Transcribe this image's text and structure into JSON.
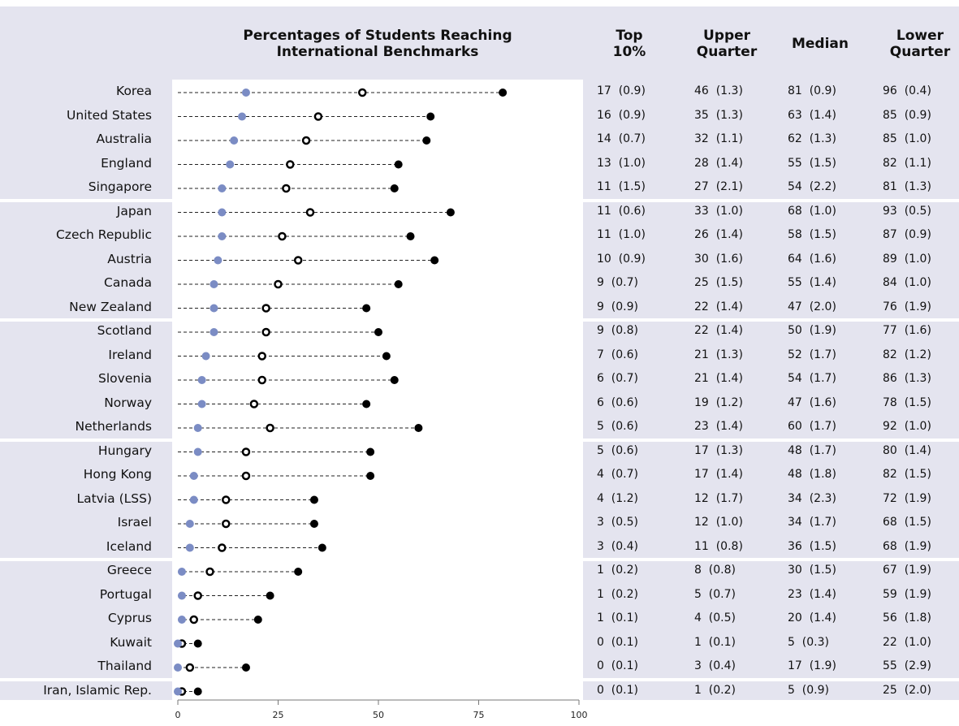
{
  "header": {
    "chart_title_line1": "Percentages of Students Reaching",
    "chart_title_line2": "International Benchmarks",
    "col_top10_line1": "Top",
    "col_top10_line2": "10%",
    "col_upper_line1": "Upper",
    "col_upper_line2": "Quarter",
    "col_median": "Median",
    "col_lower_line1": "Lower",
    "col_lower_line2": "Quarter"
  },
  "colors": {
    "top10_marker": "#7b8cc4",
    "upper_marker": "#ffffff",
    "median_marker": "#000000",
    "panel_background": "#e4e4ef"
  },
  "chart_data": {
    "type": "scatter",
    "xlim": [
      0,
      100
    ],
    "xticks": [
      "0",
      "25",
      "50",
      "75",
      "100"
    ],
    "countries": [
      "Korea",
      "United States",
      "Australia",
      "England",
      "Singapore",
      "Japan",
      "Czech Republic",
      "Austria",
      "Canada",
      "New Zealand",
      "Scotland",
      "Ireland",
      "Slovenia",
      "Norway",
      "Netherlands",
      "Hungary",
      "Hong Kong",
      "Latvia (LSS)",
      "Israel",
      "Iceland",
      "Greece",
      "Portugal",
      "Cyprus",
      "Kuwait",
      "Thailand",
      "Iran, Islamic Rep."
    ],
    "series": [
      {
        "marker": "filled-blue",
        "values": [
          17,
          16,
          14,
          13,
          11,
          11,
          11,
          10,
          9,
          9,
          9,
          7,
          6,
          6,
          5,
          5,
          4,
          4,
          3,
          3,
          1,
          1,
          1,
          0,
          0,
          0
        ]
      },
      {
        "marker": "open-circle",
        "values": [
          46,
          35,
          32,
          28,
          27,
          33,
          26,
          30,
          25,
          22,
          22,
          21,
          21,
          19,
          23,
          17,
          17,
          12,
          12,
          11,
          8,
          5,
          4,
          1,
          3,
          1
        ]
      },
      {
        "marker": "filled-black",
        "values": [
          81,
          63,
          62,
          55,
          54,
          68,
          58,
          64,
          55,
          47,
          50,
          52,
          54,
          47,
          60,
          48,
          48,
          34,
          34,
          36,
          30,
          23,
          20,
          5,
          17,
          5
        ]
      }
    ]
  },
  "table": {
    "rows": [
      {
        "top10": "17  (0.9)",
        "upper": "46  (1.3)",
        "median": "81  (0.9)",
        "lower": "96  (0.4)"
      },
      {
        "top10": "16  (0.9)",
        "upper": "35  (1.3)",
        "median": "63  (1.4)",
        "lower": "85  (0.9)"
      },
      {
        "top10": "14  (0.7)",
        "upper": "32  (1.1)",
        "median": "62  (1.3)",
        "lower": "85  (1.0)"
      },
      {
        "top10": "13  (1.0)",
        "upper": "28  (1.4)",
        "median": "55  (1.5)",
        "lower": "82  (1.1)"
      },
      {
        "top10": "11  (1.5)",
        "upper": "27  (2.1)",
        "median": "54  (2.2)",
        "lower": "81  (1.3)"
      },
      {
        "top10": "11  (0.6)",
        "upper": "33  (1.0)",
        "median": "68  (1.0)",
        "lower": "93  (0.5)"
      },
      {
        "top10": "11  (1.0)",
        "upper": "26  (1.4)",
        "median": "58  (1.5)",
        "lower": "87  (0.9)"
      },
      {
        "top10": "10  (0.9)",
        "upper": "30  (1.6)",
        "median": "64  (1.6)",
        "lower": "89  (1.0)"
      },
      {
        "top10": "9  (0.7)",
        "upper": "25  (1.5)",
        "median": "55  (1.4)",
        "lower": "84  (1.0)"
      },
      {
        "top10": "9  (0.9)",
        "upper": "22  (1.4)",
        "median": "47  (2.0)",
        "lower": "76  (1.9)"
      },
      {
        "top10": "9  (0.8)",
        "upper": "22  (1.4)",
        "median": "50  (1.9)",
        "lower": "77  (1.6)"
      },
      {
        "top10": "7  (0.6)",
        "upper": "21  (1.3)",
        "median": "52  (1.7)",
        "lower": "82  (1.2)"
      },
      {
        "top10": "6  (0.7)",
        "upper": "21  (1.4)",
        "median": "54  (1.7)",
        "lower": "86  (1.3)"
      },
      {
        "top10": "6  (0.6)",
        "upper": "19  (1.2)",
        "median": "47  (1.6)",
        "lower": "78  (1.5)"
      },
      {
        "top10": "5  (0.6)",
        "upper": "23  (1.4)",
        "median": "60  (1.7)",
        "lower": "92  (1.0)"
      },
      {
        "top10": "5  (0.6)",
        "upper": "17  (1.3)",
        "median": "48  (1.7)",
        "lower": "80  (1.4)"
      },
      {
        "top10": "4  (0.7)",
        "upper": "17  (1.4)",
        "median": "48  (1.8)",
        "lower": "82  (1.5)"
      },
      {
        "top10": "4  (1.2)",
        "upper": "12  (1.7)",
        "median": "34  (2.3)",
        "lower": "72  (1.9)"
      },
      {
        "top10": "3  (0.5)",
        "upper": "12  (1.0)",
        "median": "34  (1.7)",
        "lower": "68  (1.5)"
      },
      {
        "top10": "3  (0.4)",
        "upper": "11  (0.8)",
        "median": "36  (1.5)",
        "lower": "68  (1.9)"
      },
      {
        "top10": "1  (0.2)",
        "upper": "8  (0.8)",
        "median": "30  (1.5)",
        "lower": "67  (1.9)"
      },
      {
        "top10": "1  (0.2)",
        "upper": "5  (0.7)",
        "median": "23  (1.4)",
        "lower": "59  (1.9)"
      },
      {
        "top10": "1  (0.1)",
        "upper": "4  (0.5)",
        "median": "20  (1.4)",
        "lower": "56  (1.8)"
      },
      {
        "top10": "0  (0.1)",
        "upper": "1  (0.1)",
        "median": "5  (0.3)",
        "lower": "22  (1.0)"
      },
      {
        "top10": "0  (0.1)",
        "upper": "3  (0.4)",
        "median": "17  (1.9)",
        "lower": "55  (2.9)"
      },
      {
        "top10": "0  (0.1)",
        "upper": "1  (0.2)",
        "median": "5  (0.9)",
        "lower": "25  (2.0)"
      }
    ]
  }
}
